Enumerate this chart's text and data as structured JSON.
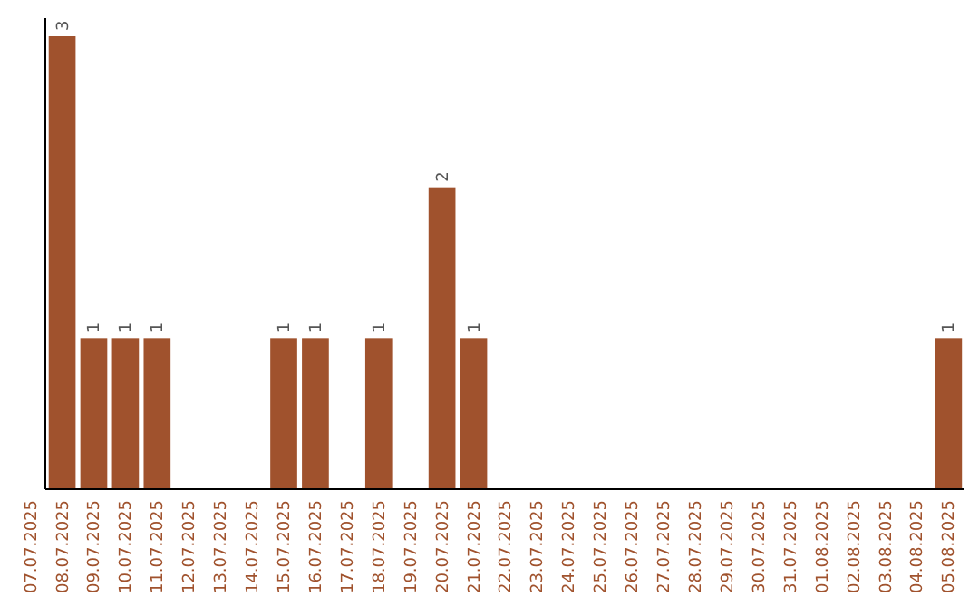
{
  "chart_data": {
    "type": "bar",
    "categories": [
      "07.07.2025",
      "08.07.2025",
      "09.07.2025",
      "10.07.2025",
      "11.07.2025",
      "12.07.2025",
      "13.07.2025",
      "14.07.2025",
      "15.07.2025",
      "16.07.2025",
      "17.07.2025",
      "18.07.2025",
      "19.07.2025",
      "20.07.2025",
      "21.07.2025",
      "22.07.2025",
      "23.07.2025",
      "24.07.2025",
      "25.07.2025",
      "26.07.2025",
      "27.07.2025",
      "28.07.2025",
      "29.07.2025",
      "30.07.2025",
      "31.07.2025",
      "01.08.2025",
      "02.08.2025",
      "03.08.2025",
      "04.08.2025",
      "05.08.2025"
    ],
    "values": [
      0,
      3,
      1,
      1,
      1,
      0,
      0,
      0,
      1,
      1,
      0,
      1,
      0,
      2,
      1,
      0,
      0,
      0,
      0,
      0,
      0,
      0,
      0,
      0,
      0,
      0,
      0,
      0,
      0,
      1
    ],
    "value_labels": [
      null,
      "3",
      "1",
      "1",
      "1",
      null,
      null,
      null,
      "1",
      "1",
      null,
      "1",
      null,
      "2",
      "1",
      null,
      null,
      null,
      null,
      null,
      null,
      null,
      null,
      null,
      null,
      null,
      null,
      null,
      null,
      "1"
    ],
    "color": "#a0522d",
    "ylim": [
      0,
      3
    ],
    "grid": false
  }
}
